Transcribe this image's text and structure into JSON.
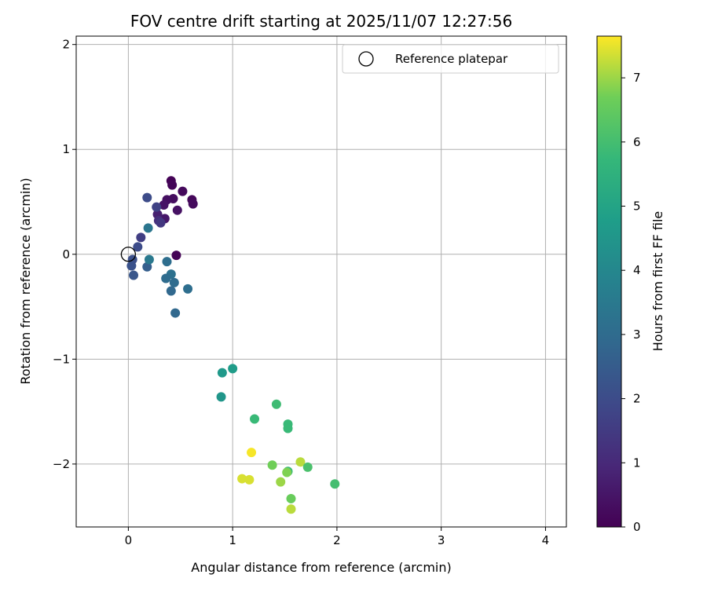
{
  "chart_data": {
    "type": "scatter",
    "title": "FOV centre drift starting at 2025/11/07 12:27:56",
    "xlabel": "Angular distance from reference (arcmin)",
    "ylabel": "Rotation from reference (arcmin)",
    "xlim": [
      -0.5,
      4.2
    ],
    "ylim": [
      -2.6,
      2.08
    ],
    "xticks": [
      0,
      1,
      2,
      3,
      4
    ],
    "yticks": [
      -2,
      -1,
      0,
      1,
      2
    ],
    "xtick_labels": [
      "0",
      "1",
      "2",
      "3",
      "4"
    ],
    "ytick_labels": [
      "−2",
      "−1",
      "0",
      "1",
      "2"
    ],
    "grid": true,
    "legend": {
      "label": "Reference platepar",
      "location": "top-right"
    },
    "reference_point": {
      "x": 0.0,
      "y": 0.0
    },
    "colorbar": {
      "label": "Hours from first FF file",
      "colormap": "viridis",
      "range": [
        0,
        7.65
      ],
      "ticks": [
        0,
        1,
        2,
        3,
        4,
        5,
        6,
        7
      ],
      "tick_labels": [
        "0",
        "1",
        "2",
        "3",
        "4",
        "5",
        "6",
        "7"
      ]
    },
    "points": [
      {
        "x": 0.41,
        "y": 0.7,
        "t": 0.05
      },
      {
        "x": 0.42,
        "y": 0.66,
        "t": 0.1
      },
      {
        "x": 0.52,
        "y": 0.6,
        "t": 0.2
      },
      {
        "x": 0.61,
        "y": 0.52,
        "t": 0.15
      },
      {
        "x": 0.62,
        "y": 0.48,
        "t": 0.25
      },
      {
        "x": 0.43,
        "y": 0.53,
        "t": 0.3
      },
      {
        "x": 0.37,
        "y": 0.52,
        "t": 0.35
      },
      {
        "x": 0.34,
        "y": 0.47,
        "t": 0.45
      },
      {
        "x": 0.47,
        "y": 0.42,
        "t": 0.4
      },
      {
        "x": 0.35,
        "y": 0.34,
        "t": 0.55
      },
      {
        "x": 0.28,
        "y": 0.38,
        "t": 0.75
      },
      {
        "x": 0.46,
        "y": -0.01,
        "t": 0.05
      },
      {
        "x": 0.29,
        "y": 0.32,
        "t": 1.15
      },
      {
        "x": 0.31,
        "y": 0.3,
        "t": 1.4
      },
      {
        "x": 0.27,
        "y": 0.45,
        "t": 1.7
      },
      {
        "x": 0.18,
        "y": 0.54,
        "t": 2.0
      },
      {
        "x": 0.12,
        "y": 0.16,
        "t": 1.6
      },
      {
        "x": 0.09,
        "y": 0.07,
        "t": 2.0
      },
      {
        "x": 0.04,
        "y": -0.05,
        "t": 2.1
      },
      {
        "x": 0.03,
        "y": -0.11,
        "t": 2.2
      },
      {
        "x": 0.05,
        "y": -0.2,
        "t": 2.3
      },
      {
        "x": 0.18,
        "y": -0.12,
        "t": 2.6
      },
      {
        "x": 0.2,
        "y": -0.05,
        "t": 3.5
      },
      {
        "x": 0.19,
        "y": 0.25,
        "t": 3.4
      },
      {
        "x": 0.37,
        "y": -0.07,
        "t": 3.1
      },
      {
        "x": 0.41,
        "y": -0.19,
        "t": 3.2
      },
      {
        "x": 0.36,
        "y": -0.23,
        "t": 3.0
      },
      {
        "x": 0.44,
        "y": -0.27,
        "t": 3.0
      },
      {
        "x": 0.41,
        "y": -0.35,
        "t": 2.9
      },
      {
        "x": 0.57,
        "y": -0.33,
        "t": 3.1
      },
      {
        "x": 0.45,
        "y": -0.56,
        "t": 2.9
      },
      {
        "x": 1.0,
        "y": -1.09,
        "t": 4.7
      },
      {
        "x": 0.9,
        "y": -1.13,
        "t": 4.6
      },
      {
        "x": 0.89,
        "y": -1.36,
        "t": 4.5
      },
      {
        "x": 1.21,
        "y": -1.57,
        "t": 5.8
      },
      {
        "x": 1.42,
        "y": -1.43,
        "t": 5.9
      },
      {
        "x": 1.53,
        "y": -1.62,
        "t": 5.8
      },
      {
        "x": 1.53,
        "y": -1.66,
        "t": 5.8
      },
      {
        "x": 1.18,
        "y": -1.89,
        "t": 7.6
      },
      {
        "x": 1.38,
        "y": -2.01,
        "t": 6.7
      },
      {
        "x": 1.65,
        "y": -1.98,
        "t": 7.2
      },
      {
        "x": 1.72,
        "y": -2.03,
        "t": 6.1
      },
      {
        "x": 1.53,
        "y": -2.07,
        "t": 5.8
      },
      {
        "x": 1.52,
        "y": -2.08,
        "t": 6.8
      },
      {
        "x": 1.09,
        "y": -2.14,
        "t": 7.4
      },
      {
        "x": 1.16,
        "y": -2.15,
        "t": 7.4
      },
      {
        "x": 1.46,
        "y": -2.17,
        "t": 7.0
      },
      {
        "x": 1.98,
        "y": -2.19,
        "t": 6.0
      },
      {
        "x": 1.56,
        "y": -2.33,
        "t": 6.6
      },
      {
        "x": 1.56,
        "y": -2.43,
        "t": 7.2
      }
    ]
  }
}
